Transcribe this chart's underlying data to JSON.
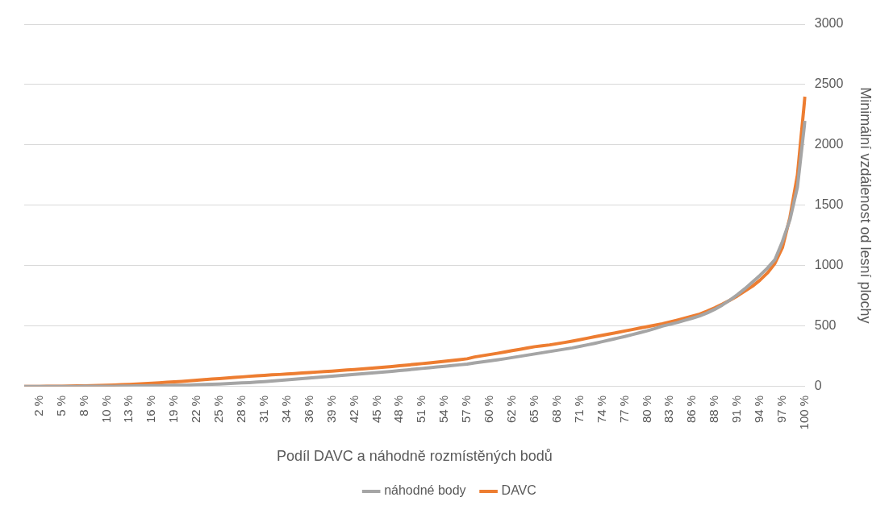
{
  "chart_data": {
    "type": "line",
    "xlabel": "Podíl DAVC a náhodně rozmístěných bodů",
    "ylabel": "Minimální vzdálenost od lesní plochy",
    "categories": [
      null,
      null,
      "2 %",
      null,
      null,
      "5 %",
      null,
      null,
      "8 %",
      null,
      null,
      "10 %",
      null,
      null,
      "13 %",
      null,
      null,
      "16 %",
      null,
      null,
      "19 %",
      null,
      null,
      "22 %",
      null,
      null,
      "25 %",
      null,
      null,
      "28 %",
      null,
      null,
      "31 %",
      null,
      null,
      "34 %",
      null,
      null,
      "36 %",
      null,
      null,
      "39 %",
      null,
      null,
      "42 %",
      null,
      null,
      "45 %",
      null,
      null,
      "48 %",
      null,
      null,
      "51 %",
      null,
      null,
      "54 %",
      null,
      null,
      "57 %",
      null,
      null,
      "60 %",
      null,
      null,
      "62 %",
      null,
      null,
      "65 %",
      null,
      null,
      "68 %",
      null,
      null,
      "71 %",
      null,
      null,
      "74 %",
      null,
      null,
      "77 %",
      null,
      null,
      "80 %",
      null,
      null,
      "83 %",
      null,
      null,
      "86 %",
      null,
      null,
      "88 %",
      null,
      null,
      "91 %",
      null,
      null,
      "94 %",
      null,
      null,
      "97 %",
      null,
      null,
      "100 %"
    ],
    "series": [
      {
        "name": "DAVC",
        "color": "#ed7d31",
        "values": [
          0,
          1,
          1,
          2,
          2,
          3,
          4,
          5,
          6,
          8,
          9,
          11,
          13,
          15,
          18,
          21,
          24,
          27,
          31,
          35,
          39,
          43,
          48,
          52,
          57,
          62,
          66,
          71,
          76,
          80,
          85,
          89,
          93,
          97,
          100,
          104,
          108,
          112,
          116,
          120,
          124,
          128,
          132,
          137,
          141,
          146,
          151,
          156,
          161,
          166,
          172,
          178,
          184,
          190,
          196,
          202,
          209,
          216,
          223,
          230,
          245,
          255,
          265,
          275,
          286,
          297,
          308,
          319,
          330,
          338,
          345,
          355,
          365,
          376,
          388,
          400,
          412,
          424,
          436,
          448,
          460,
          472,
          484,
          496,
          508,
          520,
          535,
          550,
          566,
          583,
          600,
          625,
          652,
          682,
          715,
          750,
          790,
          830,
          880,
          940,
          1020,
          1150,
          1400,
          1750,
          2400
        ]
      },
      {
        "name": "náhodné body",
        "color": "#a5a5a5",
        "values": [
          0,
          0,
          0,
          0,
          1,
          1,
          1,
          1,
          2,
          2,
          2,
          3,
          3,
          4,
          4,
          5,
          6,
          7,
          8,
          9,
          10,
          11,
          13,
          15,
          17,
          19,
          21,
          24,
          27,
          30,
          33,
          37,
          41,
          46,
          51,
          56,
          61,
          66,
          71,
          76,
          81,
          86,
          91,
          96,
          101,
          106,
          111,
          116,
          121,
          126,
          132,
          138,
          144,
          150,
          156,
          162,
          168,
          174,
          180,
          186,
          196,
          204,
          212,
          221,
          230,
          240,
          250,
          260,
          270,
          280,
          290,
          300,
          310,
          320,
          332,
          345,
          358,
          372,
          386,
          400,
          414,
          430,
          446,
          462,
          480,
          500,
          515,
          530,
          548,
          566,
          585,
          610,
          640,
          675,
          715,
          760,
          810,
          865,
          920,
          980,
          1050,
          1200,
          1380,
          1650,
          2200
        ]
      }
    ],
    "ylim": [
      0,
      3000
    ],
    "yticks": [
      0,
      500,
      1000,
      1500,
      2000,
      2500,
      3000
    ],
    "grid": "y",
    "legend": "bottom",
    "marker": "none"
  }
}
